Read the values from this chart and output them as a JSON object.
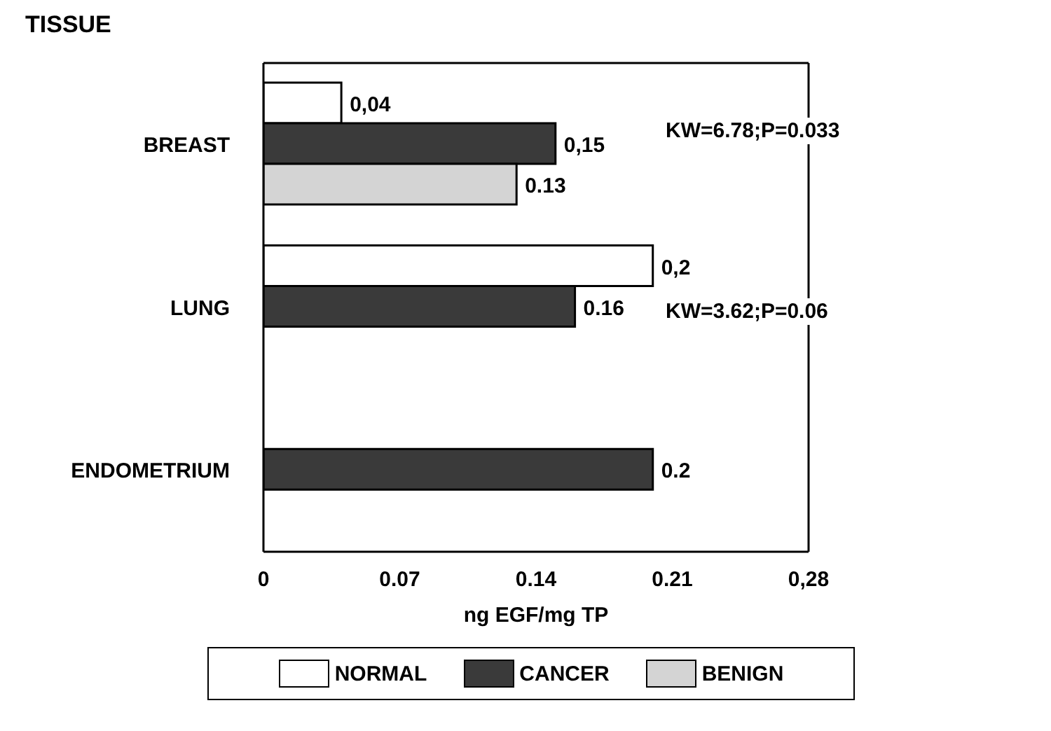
{
  "chart_data": {
    "type": "bar",
    "orientation": "horizontal",
    "title": "TISSUE",
    "xlabel": "ng EGF/mg TP",
    "categories": [
      "BREAST",
      "LUNG",
      "ENDOMETRIUM"
    ],
    "series": [
      {
        "name": "NORMAL",
        "color": "#ffffff",
        "values": [
          0.04,
          0.2,
          null
        ],
        "value_labels": [
          "0,04",
          "0,2",
          null
        ]
      },
      {
        "name": "CANCER",
        "color": "#3a3a3a",
        "values": [
          0.15,
          0.16,
          0.2
        ],
        "value_labels": [
          "0,15",
          "0.16",
          "0.2"
        ]
      },
      {
        "name": "BENIGN",
        "color": "#d4d4d4",
        "values": [
          0.13,
          null,
          null
        ],
        "value_labels": [
          "0.13",
          null,
          null
        ]
      }
    ],
    "xlim": [
      0,
      0.28
    ],
    "xticks": [
      0,
      0.07,
      0.14,
      0.21,
      {
        "value": 0.28,
        "label": "0,28"
      }
    ],
    "annotations": [
      "KW=6.78;P=0.033",
      "KW=3.62;P=0.06"
    ],
    "grid": false,
    "legend": "bottom"
  }
}
